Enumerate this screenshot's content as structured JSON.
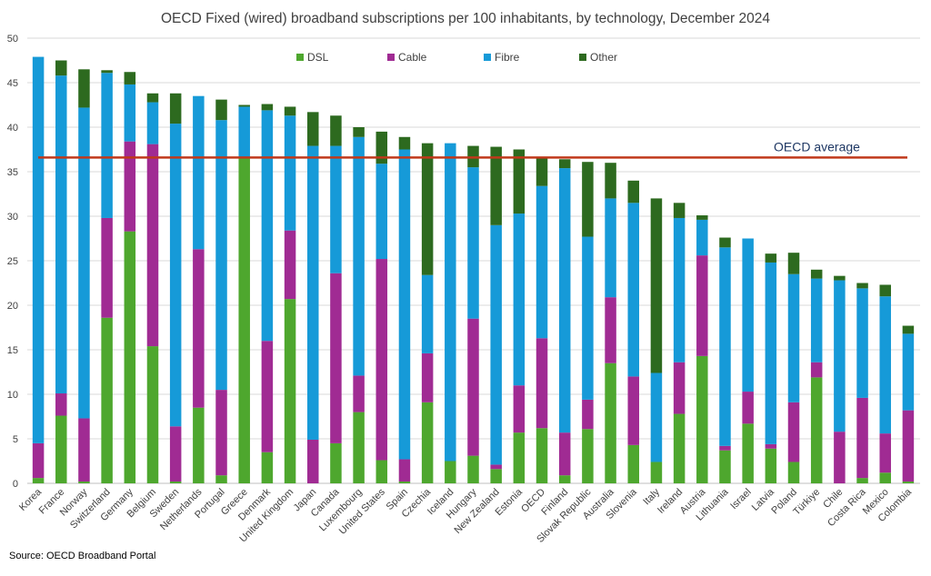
{
  "chart_data": {
    "type": "bar",
    "stacked": true,
    "title": "OECD Fixed (wired) broadband subscriptions per 100 inhabitants, by technology, December 2024",
    "xlabel": "",
    "ylabel": "",
    "ylim": [
      0,
      50
    ],
    "yticks": [
      "0",
      "5",
      "10",
      "15",
      "20",
      "25",
      "30",
      "35",
      "40",
      "45",
      "50"
    ],
    "grid": true,
    "legend_position": "top",
    "categories": [
      "Korea",
      "France",
      "Norway",
      "Switzerland",
      "Germany",
      "Belgium",
      "Sweden",
      "Netherlands",
      "Portugal",
      "Greece",
      "Denmark",
      "United Kingdom",
      "Japan",
      "Canada",
      "Luxembourg",
      "United States",
      "Spain",
      "Czechia",
      "Iceland",
      "Hungary",
      "New Zealand",
      "Estonia",
      "OECD",
      "Finland",
      "Slovak Republic",
      "Australia",
      "Slovenia",
      "Italy",
      "Ireland",
      "Austria",
      "Lithuania",
      "Israel",
      "Latvia",
      "Poland",
      "Türkiye",
      "Chile",
      "Costa Rica",
      "Mexico",
      "Colombia"
    ],
    "series": [
      {
        "name": "DSL",
        "color": "#4ea72e",
        "values": [
          0.6,
          7.6,
          0.2,
          18.6,
          28.3,
          15.4,
          0.2,
          8.5,
          0.9,
          36.5,
          3.5,
          20.7,
          0.0,
          4.5,
          8.0,
          2.6,
          0.2,
          9.1,
          2.5,
          3.1,
          1.6,
          5.7,
          6.2,
          0.9,
          6.1,
          13.5,
          4.3,
          2.4,
          7.8,
          14.3,
          3.7,
          6.7,
          3.9,
          2.4,
          11.9,
          0.0,
          0.6,
          1.2,
          0.2
        ]
      },
      {
        "name": "Cable",
        "color": "#a02b93",
        "values": [
          3.9,
          2.5,
          7.1,
          11.2,
          10.1,
          22.7,
          6.2,
          17.8,
          9.6,
          0.0,
          12.5,
          7.7,
          4.9,
          19.1,
          4.1,
          22.6,
          2.5,
          5.5,
          0.0,
          15.4,
          0.5,
          5.3,
          10.1,
          4.8,
          3.3,
          7.4,
          7.7,
          0.0,
          5.8,
          11.3,
          0.5,
          3.6,
          0.5,
          6.7,
          1.7,
          5.8,
          9.0,
          4.4,
          8.0
        ]
      },
      {
        "name": "Fibre",
        "color": "#169ad8",
        "values": [
          43.4,
          35.7,
          34.9,
          16.3,
          6.4,
          4.7,
          34.0,
          17.2,
          30.3,
          5.8,
          25.9,
          12.9,
          33.0,
          14.3,
          26.8,
          10.7,
          34.8,
          8.8,
          35.7,
          17.0,
          26.9,
          19.3,
          17.1,
          29.7,
          18.3,
          11.1,
          19.5,
          10.0,
          16.2,
          4.0,
          22.3,
          17.2,
          20.4,
          14.4,
          9.4,
          17.0,
          12.3,
          15.4,
          8.6
        ]
      },
      {
        "name": "Other",
        "color": "#2d6a1f",
        "values": [
          0.0,
          1.7,
          4.3,
          0.3,
          1.4,
          1.0,
          3.4,
          0.0,
          2.3,
          0.2,
          0.7,
          1.0,
          3.8,
          3.4,
          1.1,
          3.6,
          1.4,
          14.8,
          0.0,
          2.4,
          8.8,
          7.2,
          3.1,
          1.0,
          8.4,
          4.0,
          2.5,
          19.6,
          1.7,
          0.5,
          1.1,
          0.0,
          1.0,
          2.4,
          1.0,
          0.5,
          0.6,
          1.3,
          0.9
        ]
      }
    ],
    "reference_line": {
      "label": "OECD average",
      "value": 36.6,
      "color": "#c0391b"
    },
    "source": "Source: OECD Broadband Portal"
  }
}
